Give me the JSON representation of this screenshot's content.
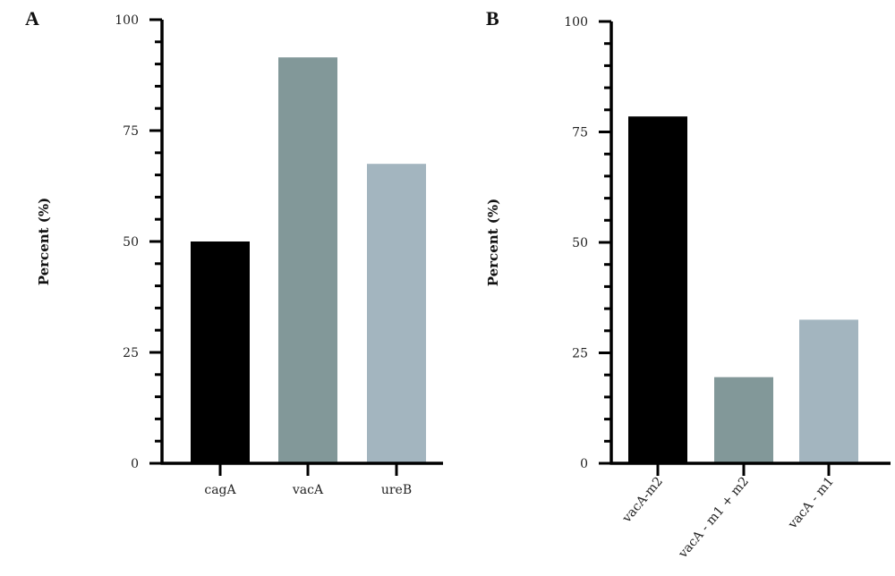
{
  "chart_data": [
    {
      "panel_label": "A",
      "type": "bar",
      "ylabel": "Percent (%)",
      "ylim": [
        0,
        100
      ],
      "yticks": [
        0,
        25,
        50,
        75,
        100
      ],
      "minor_step": 5,
      "categories": [
        "cagA",
        "vacA",
        "ureB"
      ],
      "values": [
        50,
        91.5,
        67.5
      ],
      "colors": [
        "#000000",
        "#829899",
        "#a3b5bf"
      ],
      "xlabel_rotation": 0
    },
    {
      "panel_label": "B",
      "type": "bar",
      "ylabel": "Percent (%)",
      "ylim": [
        0,
        100
      ],
      "yticks": [
        0,
        25,
        50,
        75,
        100
      ],
      "minor_step": 5,
      "categories": [
        "vacA-m2",
        "vacA - m1 + m2",
        "vacA - m1"
      ],
      "values": [
        78.5,
        19.5,
        32.5
      ],
      "colors": [
        "#000000",
        "#829899",
        "#a3b5bf"
      ],
      "xlabel_rotation": -50
    }
  ]
}
